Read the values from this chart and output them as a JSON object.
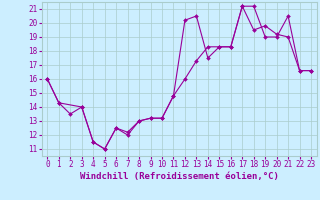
{
  "xlabel": "Windchill (Refroidissement éolien,°C)",
  "bg_color": "#cceeff",
  "line_color": "#990099",
  "xlim": [
    -0.5,
    23.5
  ],
  "ylim": [
    10.5,
    21.5
  ],
  "xticks": [
    0,
    1,
    2,
    3,
    4,
    5,
    6,
    7,
    8,
    9,
    10,
    11,
    12,
    13,
    14,
    15,
    16,
    17,
    18,
    19,
    20,
    21,
    22,
    23
  ],
  "yticks": [
    11,
    12,
    13,
    14,
    15,
    16,
    17,
    18,
    19,
    20,
    21
  ],
  "series1_x": [
    0,
    1,
    2,
    3,
    4,
    5,
    6,
    7,
    8,
    9,
    10,
    11,
    12,
    13,
    14,
    15,
    16,
    17,
    18,
    19,
    20,
    21,
    22,
    23
  ],
  "series1_y": [
    16.0,
    14.3,
    13.5,
    14.0,
    11.5,
    11.0,
    12.5,
    12.0,
    13.0,
    13.2,
    13.2,
    14.8,
    16.0,
    17.3,
    18.3,
    18.3,
    18.3,
    21.2,
    19.5,
    19.8,
    19.2,
    19.0,
    16.6,
    16.6
  ],
  "series2_x": [
    0,
    1,
    3,
    4,
    5,
    6,
    7,
    8,
    9,
    10,
    11,
    12,
    13,
    14,
    15,
    16,
    17,
    18,
    19,
    20,
    21,
    22,
    23
  ],
  "series2_y": [
    16.0,
    14.3,
    14.0,
    11.5,
    11.0,
    12.5,
    12.2,
    13.0,
    13.2,
    13.2,
    14.8,
    20.2,
    20.5,
    17.5,
    18.3,
    18.3,
    21.2,
    21.2,
    19.0,
    19.0,
    20.5,
    16.6,
    16.6
  ],
  "grid_color": "#aacccc",
  "font_color": "#990099",
  "xlabel_fontsize": 6.5,
  "tick_fontsize": 5.5
}
